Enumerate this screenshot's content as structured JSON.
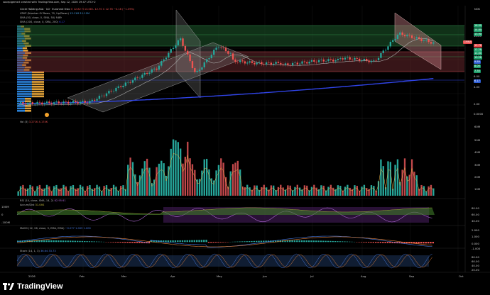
{
  "header": {
    "creator": "sovepigemsrt created with TradingView.com, Sep 12, 2026 19:47 UTC+2",
    "currency": "NOK"
  },
  "legend": {
    "main": "Circle Holding ASA · 1D · Euronext Oslo",
    "ohlc": "O 12.82  H 13.08  L 12.70  C 12.76  −0.18 (−1.39%)",
    "vrvp": "VRVP (Number Of Rows, 70, Up/Down)",
    "vrvp_vals": "13.11M  11.11M",
    "sma50": "SMA (50, close, 0, SMA, 50)",
    "sma50_val": "9.89",
    "sma200": "SMA (200, close, 0, SMA, 200)",
    "sma200_val": "6.17",
    "vol": "Vol (3)",
    "vol_vals": "3.271K  4.174K",
    "rsi": "RSI (14, close, SMA, 14, 2)",
    "rsi_vals": "62.95  61",
    "accum": "Accum/Dist",
    "accum_val": "31.04K",
    "macd": "MACD (12, 26, close, 9, EMA, EMA)",
    "macd_vals": "−0.077  1.009  1.000",
    "stoch": "Stoch (14, 1, 3)",
    "stoch_vals": "36.64  33.73"
  },
  "price_axis": {
    "labels": [
      "16.00",
      "14.00",
      "12.00",
      "10.00",
      "8.00",
      "6.00",
      "4.00",
      "2.00",
      "0.0000"
    ],
    "tags": [
      {
        "text": "16.00",
        "color": "#1e9e6a"
      },
      {
        "text": "14.80",
        "color": "#1e9e6a"
      },
      {
        "text": "13.90",
        "color": "#1e9e6a"
      },
      {
        "text": "CIRNA",
        "color": "#e74c4c"
      },
      {
        "text": "12.76",
        "color": "#e74c4c"
      },
      {
        "text": "12.28",
        "color": "#1e9e6a"
      },
      {
        "text": "11.00",
        "color": "#1e9e6a"
      },
      {
        "text": "10.28",
        "color": "#1e9e6a"
      },
      {
        "text": "9.89",
        "color": "#2f5fd6"
      },
      {
        "text": "8.00",
        "color": "#1e9e6a"
      },
      {
        "text": "7.30",
        "color": "#1e9e6a"
      },
      {
        "text": "6.17",
        "color": "#2f5fd6"
      }
    ]
  },
  "vol_axis": [
    "60M",
    "50M",
    "40M",
    "30M",
    "20M",
    "10M"
  ],
  "rsi_axis": [
    "80.00",
    "60.00",
    "40.00"
  ],
  "accum_axis": [
    "100M",
    "0",
    "-100M"
  ],
  "macd_axis": [
    "2.000",
    "1.000",
    "0.000",
    "-1.000"
  ],
  "stoch_axis": [
    "80.00",
    "60.00",
    "40.00",
    "20.00"
  ],
  "time_axis": [
    "2026",
    "Feb",
    "Mar",
    "Apr",
    "May",
    "Jun",
    "Jul",
    "Aug",
    "Sep",
    "Oct"
  ],
  "footer": {
    "logo_text": "TradingView"
  },
  "colors": {
    "up": "#26a69a",
    "down": "#ef5350",
    "sma200": "#3044e8",
    "grid": "#1b1b1b",
    "zone": "#2b7a3a"
  }
}
